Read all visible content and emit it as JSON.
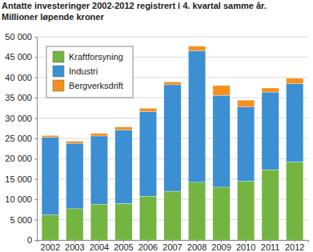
{
  "chart_data": {
    "type": "bar",
    "stacked": true,
    "grid": true,
    "legend": "upper left",
    "title": "Antatte investeringer 2002-2012 registrert i 4. kvartal samme år.",
    "subtitle": "Millioner løpende kroner",
    "categories": [
      "2002",
      "2003",
      "2004",
      "2005",
      "2006",
      "2007",
      "2008",
      "2009",
      "2010",
      "2011",
      "2012"
    ],
    "series": [
      {
        "name": "Kraftforsyning",
        "color": "#74b440",
        "values": [
          6200,
          7700,
          8800,
          9000,
          10800,
          12000,
          14200,
          13000,
          14500,
          17300,
          19200
        ]
      },
      {
        "name": "Industri",
        "color": "#3b8fd2",
        "values": [
          19100,
          16100,
          16800,
          18100,
          20800,
          26200,
          32400,
          22600,
          18300,
          19100,
          19300
        ]
      },
      {
        "name": "Bergverksdrift",
        "color": "#f5901e",
        "values": [
          400,
          500,
          600,
          700,
          800,
          700,
          1100,
          2400,
          1600,
          1000,
          1300
        ]
      }
    ],
    "ylim": [
      0,
      50000
    ],
    "yticks": [
      0,
      {
        "value": 5000,
        "label": "5 000"
      },
      {
        "value": 10000,
        "label": "10 000"
      },
      {
        "value": 15000,
        "label": "15 000"
      },
      {
        "value": 20000,
        "label": "20 000"
      },
      {
        "value": 25000,
        "label": "25 000"
      },
      {
        "value": 30000,
        "label": "30 000"
      },
      {
        "value": 35000,
        "label": "35 000"
      },
      {
        "value": 40000,
        "label": "40 000"
      },
      {
        "value": 45000,
        "label": "45 000"
      },
      {
        "value": 50000,
        "label": "50 000"
      }
    ]
  }
}
